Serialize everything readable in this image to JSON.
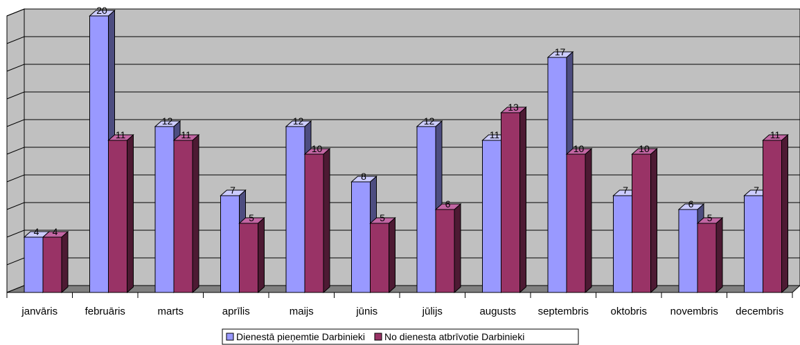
{
  "chart_data": {
    "type": "bar",
    "three_d": true,
    "categories": [
      "janvāris",
      "februāris",
      "marts",
      "aprīlis",
      "maijs",
      "jūnis",
      "jūlijs",
      "augusts",
      "septembris",
      "oktobris",
      "novembris",
      "decembris"
    ],
    "series": [
      {
        "name": "Dienestā pieņemtie Darbinieki",
        "values": [
          4,
          20,
          12,
          7,
          12,
          8,
          12,
          11,
          17,
          7,
          6,
          7
        ],
        "color": "#9999ff",
        "side_color": "#4d4d80",
        "top_color": "#ccccff"
      },
      {
        "name": "No dienesta atbrīvotie Darbinieki",
        "values": [
          4,
          11,
          11,
          5,
          10,
          5,
          6,
          13,
          10,
          10,
          5,
          11
        ],
        "color": "#993366",
        "side_color": "#4d1a33",
        "top_color": "#c266a3"
      }
    ],
    "ylim": [
      0,
      20
    ],
    "grid_step": 2,
    "grid": true,
    "wall_color": "#c0c0c0",
    "floor_color": "#808080",
    "legend_position": "bottom",
    "xlabel": "",
    "ylabel": ""
  }
}
